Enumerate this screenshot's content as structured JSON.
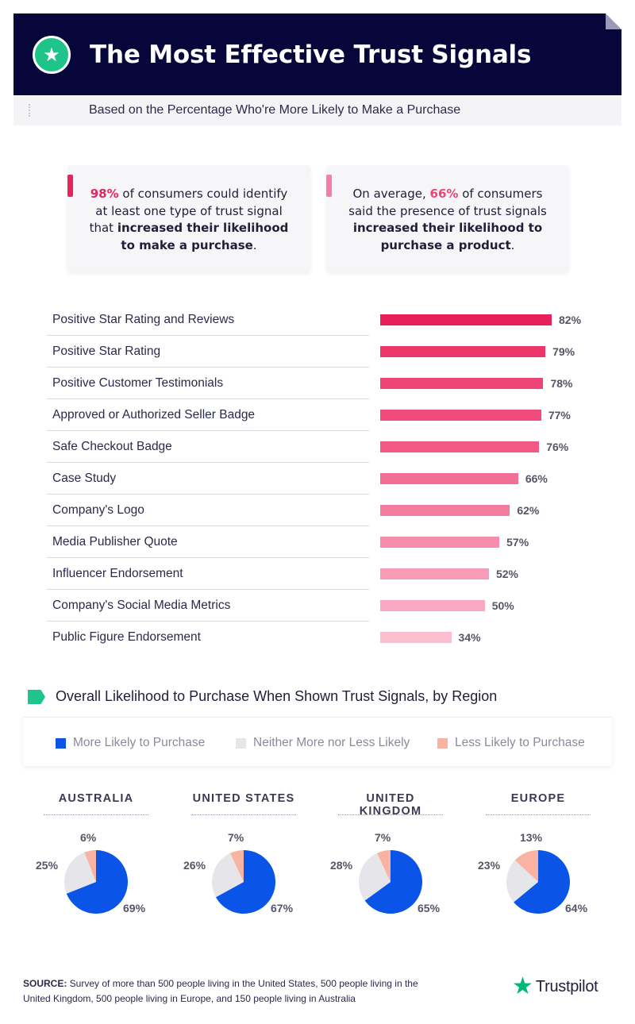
{
  "header": {
    "title": "The Most Effective Trust Signals",
    "icon": "star-icon"
  },
  "subtitle": "Based on the Percentage Who're More Likely to Make a Purchase",
  "callouts": [
    {
      "pct": "98%",
      "pre": "",
      "mid": " of consumers could identify at least one type of trust signal that ",
      "bold": "increased their likelihood to make a purchase",
      "end": ".",
      "mark_color": "#e8245c"
    },
    {
      "pct": "66%",
      "pre": "On average, ",
      "mid": " of consumers said the presence of trust signals ",
      "bold": "increased their likelihood to purchase a product",
      "end": ".",
      "mark_color": "#f47ea6"
    }
  ],
  "chart_data": [
    {
      "type": "bar",
      "orientation": "horizontal",
      "categories": [
        "Positive Star Rating and Reviews",
        "Positive Star Rating",
        "Positive Customer Testimonials",
        "Approved or Authorized Seller Badge",
        "Safe Checkout Badge",
        "Case Study",
        "Company's Logo",
        "Media Publisher Quote",
        "Influencer Endorsement",
        "Company's Social Media Metrics",
        "Public Figure Endorsement"
      ],
      "values": [
        82,
        79,
        78,
        77,
        76,
        66,
        62,
        57,
        52,
        50,
        34
      ],
      "value_labels": [
        "82%",
        "79%",
        "78%",
        "77%",
        "76%",
        "66%",
        "62%",
        "57%",
        "52%",
        "50%",
        "34%"
      ],
      "colors": [
        "#e8205a",
        "#ec3569",
        "#ef4576",
        "#f04b7b",
        "#f25a86",
        "#f36e95",
        "#f57ca0",
        "#f68dac",
        "#f89bb6",
        "#f9a9c1",
        "#fbbfd0"
      ],
      "xlim": [
        0,
        100
      ]
    },
    {
      "type": "pie",
      "title": "Overall Likelihood to Purchase When Shown Trust Signals, by Region",
      "legend": [
        "More Likely to Purchase",
        "Neither More nor Less Likely",
        "Less Likely to Purchase"
      ],
      "colors": [
        "#0a55e8",
        "#e6e6ea",
        "#f8b3a2"
      ],
      "regions": [
        {
          "name": "AUSTRALIA",
          "values": [
            69,
            25,
            6
          ],
          "labels": [
            "69%",
            "25%",
            "6%"
          ]
        },
        {
          "name": "UNITED STATES",
          "values": [
            67,
            26,
            7
          ],
          "labels": [
            "67%",
            "26%",
            "7%"
          ]
        },
        {
          "name": "UNITED KINGDOM",
          "values": [
            65,
            28,
            7
          ],
          "labels": [
            "65%",
            "28%",
            "7%"
          ]
        },
        {
          "name": "EUROPE",
          "values": [
            64,
            23,
            13
          ],
          "labels": [
            "64%",
            "23%",
            "13%"
          ]
        }
      ]
    }
  ],
  "source": {
    "label": "SOURCE:",
    "text": " Survey of more than 500 people living in the United States, 500 people living in the United Kingdom, 500 people living in Europe, and 150 people living in Australia"
  },
  "logo": {
    "name": "Trustpilot",
    "icon": "trustpilot-star-icon"
  }
}
